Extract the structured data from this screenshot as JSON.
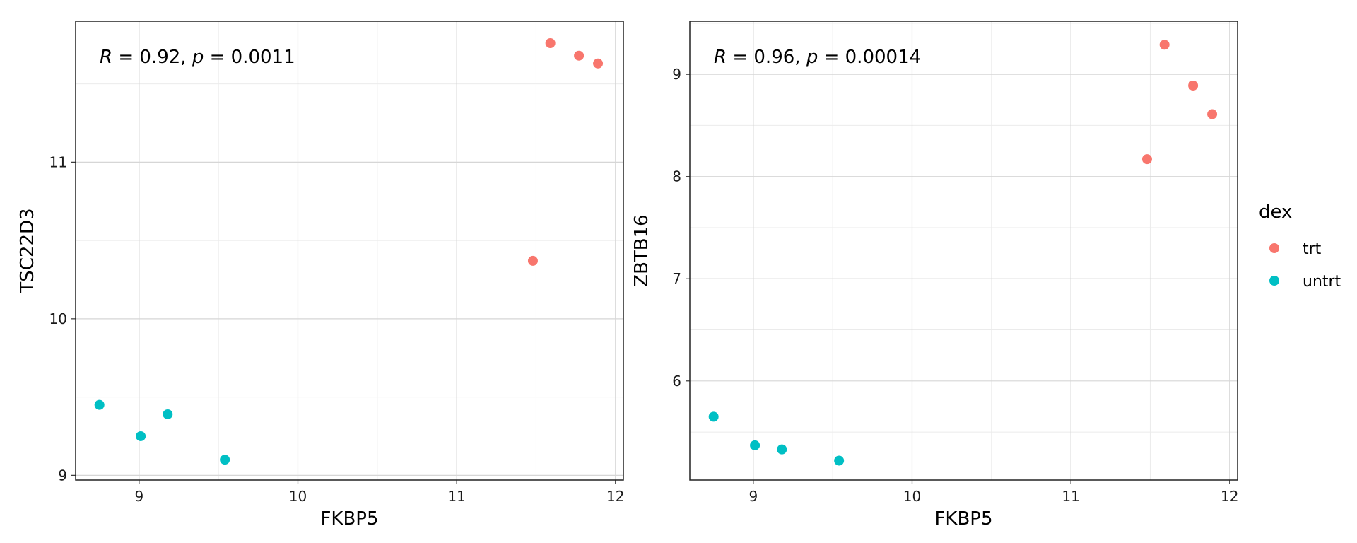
{
  "chart_data": [
    {
      "type": "scatter",
      "xlabel": "FKBP5",
      "ylabel": "TSC22D3",
      "xlim": [
        8.6,
        12.05
      ],
      "ylim": [
        8.97,
        11.9
      ],
      "xticks": [
        9,
        10,
        11,
        12
      ],
      "yticks": [
        9,
        10,
        11
      ],
      "annotation": {
        "r_label": "R",
        "r_value": " = 0.92, ",
        "p_label": "p",
        "p_value": " = 0.0011"
      },
      "series": [
        {
          "name": "trt",
          "color": "#F8766D",
          "points": [
            [
              11.48,
              10.37
            ],
            [
              11.59,
              11.76
            ],
            [
              11.77,
              11.68
            ],
            [
              11.89,
              11.63
            ]
          ]
        },
        {
          "name": "untrt",
          "color": "#00BFC4",
          "points": [
            [
              8.75,
              9.45
            ],
            [
              9.01,
              9.25
            ],
            [
              9.18,
              9.39
            ],
            [
              9.54,
              9.1
            ]
          ]
        }
      ],
      "grid": true
    },
    {
      "type": "scatter",
      "xlabel": "FKBP5",
      "ylabel": "ZBTB16",
      "xlim": [
        8.6,
        12.05
      ],
      "ylim": [
        5.03,
        9.52
      ],
      "xticks": [
        9,
        10,
        11,
        12
      ],
      "yticks": [
        6,
        7,
        8,
        9
      ],
      "annotation": {
        "r_label": "R",
        "r_value": " = 0.96, ",
        "p_label": "p",
        "p_value": " = 0.00014"
      },
      "series": [
        {
          "name": "trt",
          "color": "#F8766D",
          "points": [
            [
              11.48,
              8.17
            ],
            [
              11.59,
              9.29
            ],
            [
              11.77,
              8.89
            ],
            [
              11.89,
              8.61
            ]
          ]
        },
        {
          "name": "untrt",
          "color": "#00BFC4",
          "points": [
            [
              8.75,
              5.65
            ],
            [
              9.01,
              5.37
            ],
            [
              9.18,
              5.33
            ],
            [
              9.54,
              5.22
            ]
          ]
        }
      ],
      "grid": true
    }
  ],
  "legend": {
    "title": "dex",
    "placement": "right",
    "items": [
      {
        "label": "trt",
        "color": "#F8766D"
      },
      {
        "label": "untrt",
        "color": "#00BFC4"
      }
    ]
  }
}
